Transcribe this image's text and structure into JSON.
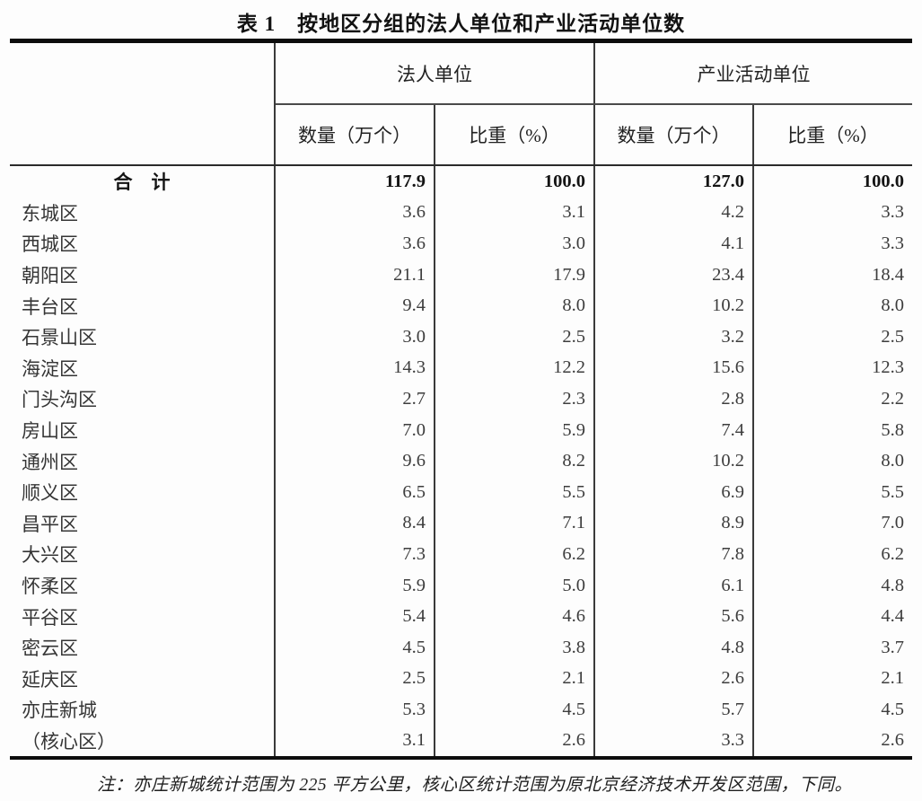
{
  "title": "表 1　按地区分组的法人单位和产业活动单位数",
  "table": {
    "group_headers": [
      {
        "label": "法人单位"
      },
      {
        "label": "产业活动单位"
      }
    ],
    "sub_headers": [
      "数量（万个）",
      "比重（%）",
      "数量（万个）",
      "比重（%）"
    ],
    "rows": [
      {
        "region": "合　计",
        "lv_count": "117.9",
        "lv_share": "100.0",
        "ia_count": "127.0",
        "ia_share": "100.0",
        "bold": true
      },
      {
        "region": "东城区",
        "lv_count": "3.6",
        "lv_share": "3.1",
        "ia_count": "4.2",
        "ia_share": "3.3",
        "bold": false
      },
      {
        "region": "西城区",
        "lv_count": "3.6",
        "lv_share": "3.0",
        "ia_count": "4.1",
        "ia_share": "3.3",
        "bold": false
      },
      {
        "region": "朝阳区",
        "lv_count": "21.1",
        "lv_share": "17.9",
        "ia_count": "23.4",
        "ia_share": "18.4",
        "bold": false
      },
      {
        "region": "丰台区",
        "lv_count": "9.4",
        "lv_share": "8.0",
        "ia_count": "10.2",
        "ia_share": "8.0",
        "bold": false
      },
      {
        "region": "石景山区",
        "lv_count": "3.0",
        "lv_share": "2.5",
        "ia_count": "3.2",
        "ia_share": "2.5",
        "bold": false
      },
      {
        "region": "海淀区",
        "lv_count": "14.3",
        "lv_share": "12.2",
        "ia_count": "15.6",
        "ia_share": "12.3",
        "bold": false
      },
      {
        "region": "门头沟区",
        "lv_count": "2.7",
        "lv_share": "2.3",
        "ia_count": "2.8",
        "ia_share": "2.2",
        "bold": false
      },
      {
        "region": "房山区",
        "lv_count": "7.0",
        "lv_share": "5.9",
        "ia_count": "7.4",
        "ia_share": "5.8",
        "bold": false
      },
      {
        "region": "通州区",
        "lv_count": "9.6",
        "lv_share": "8.2",
        "ia_count": "10.2",
        "ia_share": "8.0",
        "bold": false
      },
      {
        "region": "顺义区",
        "lv_count": "6.5",
        "lv_share": "5.5",
        "ia_count": "6.9",
        "ia_share": "5.5",
        "bold": false
      },
      {
        "region": "昌平区",
        "lv_count": "8.4",
        "lv_share": "7.1",
        "ia_count": "8.9",
        "ia_share": "7.0",
        "bold": false
      },
      {
        "region": "大兴区",
        "lv_count": "7.3",
        "lv_share": "6.2",
        "ia_count": "7.8",
        "ia_share": "6.2",
        "bold": false
      },
      {
        "region": "怀柔区",
        "lv_count": "5.9",
        "lv_share": "5.0",
        "ia_count": "6.1",
        "ia_share": "4.8",
        "bold": false
      },
      {
        "region": "平谷区",
        "lv_count": "5.4",
        "lv_share": "4.6",
        "ia_count": "5.6",
        "ia_share": "4.4",
        "bold": false
      },
      {
        "region": "密云区",
        "lv_count": "4.5",
        "lv_share": "3.8",
        "ia_count": "4.8",
        "ia_share": "3.7",
        "bold": false
      },
      {
        "region": "延庆区",
        "lv_count": "2.5",
        "lv_share": "2.1",
        "ia_count": "2.6",
        "ia_share": "2.1",
        "bold": false
      },
      {
        "region": "亦庄新城",
        "lv_count": "5.3",
        "lv_share": "4.5",
        "ia_count": "5.7",
        "ia_share": "4.5",
        "bold": false
      },
      {
        "region": "（核心区）",
        "lv_count": "3.1",
        "lv_share": "2.6",
        "ia_count": "3.3",
        "ia_share": "2.6",
        "bold": false
      }
    ]
  },
  "footnote": "注：亦庄新城统计范围为 225 平方公里，核心区统计范围为原北京经济技术开发区范围，下同。"
}
